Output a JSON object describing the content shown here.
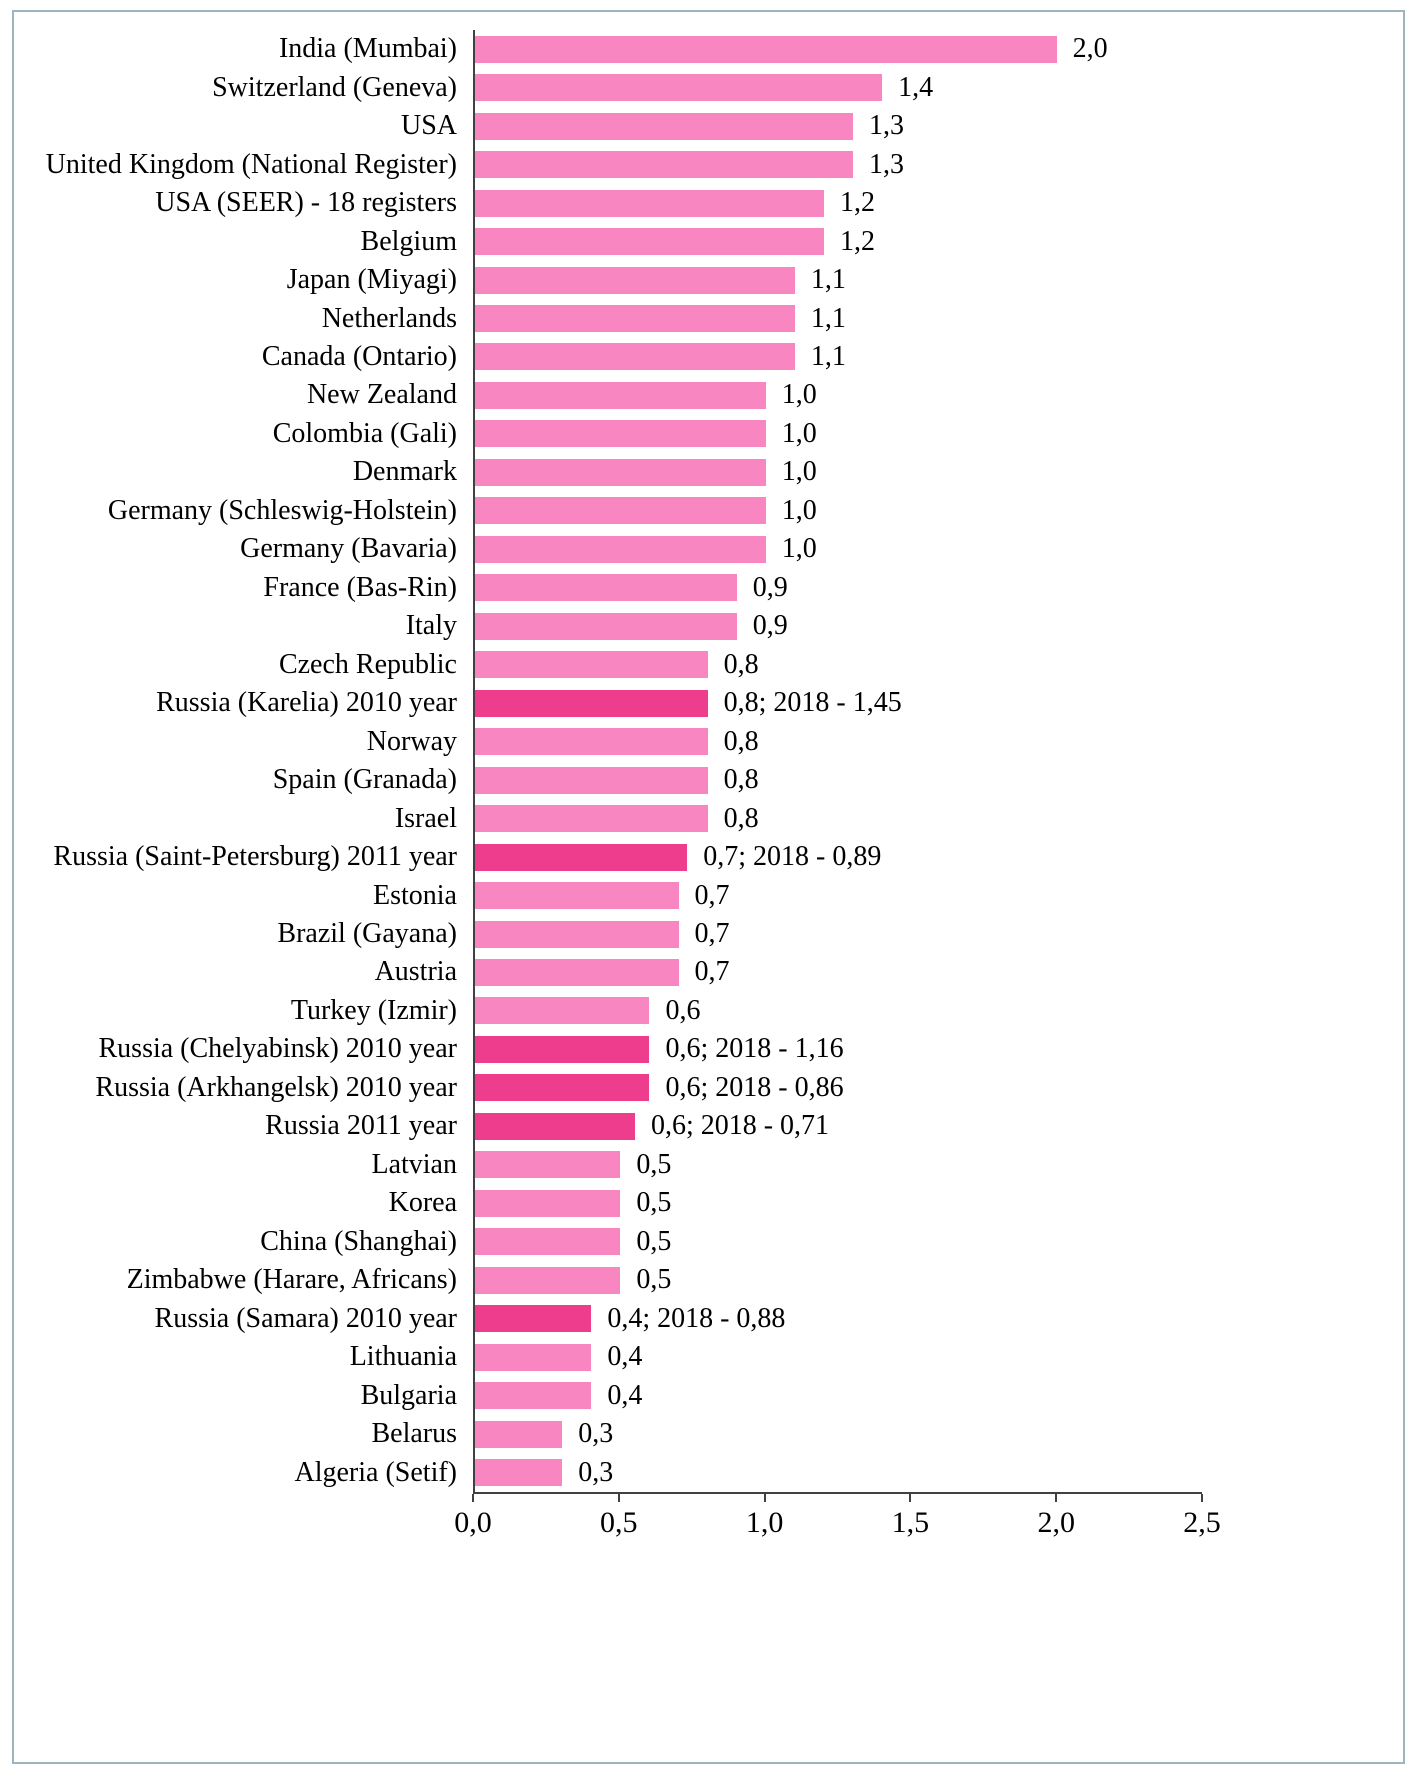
{
  "chart_data": {
    "type": "bar",
    "orientation": "horizontal",
    "title": "",
    "xlabel": "",
    "ylabel": "",
    "xlim": [
      0,
      2.5
    ],
    "x_ticks": [
      "0,0",
      "0,5",
      "1,0",
      "1,5",
      "2,0",
      "2,5"
    ],
    "grid": false,
    "legend": "none",
    "bar_color": "#f886c0",
    "highlight_color": "#ef3d8d",
    "bars": [
      {
        "label": "India (Mumbai)",
        "value": 2.0,
        "value_label": "2,0",
        "highlight": false
      },
      {
        "label": "Switzerland (Geneva)",
        "value": 1.4,
        "value_label": "1,4",
        "highlight": false
      },
      {
        "label": "USA",
        "value": 1.3,
        "value_label": "1,3",
        "highlight": false
      },
      {
        "label": "United Kingdom (National Register)",
        "value": 1.3,
        "value_label": "1,3",
        "highlight": false
      },
      {
        "label": "USA (SEER) - 18 registers",
        "value": 1.2,
        "value_label": "1,2",
        "highlight": false
      },
      {
        "label": "Belgium",
        "value": 1.2,
        "value_label": "1,2",
        "highlight": false
      },
      {
        "label": "Japan (Miyagi)",
        "value": 1.1,
        "value_label": "1,1",
        "highlight": false
      },
      {
        "label": "Netherlands",
        "value": 1.1,
        "value_label": "1,1",
        "highlight": false
      },
      {
        "label": "Canada (Ontario)",
        "value": 1.1,
        "value_label": "1,1",
        "highlight": false
      },
      {
        "label": "New Zealand",
        "value": 1.0,
        "value_label": "1,0",
        "highlight": false
      },
      {
        "label": "Colombia (Gali)",
        "value": 1.0,
        "value_label": "1,0",
        "highlight": false
      },
      {
        "label": "Denmark",
        "value": 1.0,
        "value_label": "1,0",
        "highlight": false
      },
      {
        "label": "Germany (Schleswig-Holstein)",
        "value": 1.0,
        "value_label": "1,0",
        "highlight": false
      },
      {
        "label": "Germany (Bavaria)",
        "value": 1.0,
        "value_label": "1,0",
        "highlight": false
      },
      {
        "label": "France (Bas-Rin)",
        "value": 0.9,
        "value_label": "0,9",
        "highlight": false
      },
      {
        "label": "Italy",
        "value": 0.9,
        "value_label": "0,9",
        "highlight": false
      },
      {
        "label": "Czech Republic",
        "value": 0.8,
        "value_label": "0,8",
        "highlight": false
      },
      {
        "label": "Russia (Karelia) 2010 year",
        "value": 0.8,
        "value_label": "0,8; 2018 - 1,45",
        "highlight": true
      },
      {
        "label": "Norway",
        "value": 0.8,
        "value_label": "0,8",
        "highlight": false
      },
      {
        "label": "Spain (Granada)",
        "value": 0.8,
        "value_label": "0,8",
        "highlight": false
      },
      {
        "label": "Israel",
        "value": 0.8,
        "value_label": "0,8",
        "highlight": false
      },
      {
        "label": "Russia (Saint-Petersburg) 2011 year",
        "value": 0.73,
        "value_label": "0,7; 2018 - 0,89",
        "highlight": true
      },
      {
        "label": "Estonia",
        "value": 0.7,
        "value_label": "0,7",
        "highlight": false
      },
      {
        "label": "Brazil (Gayana)",
        "value": 0.7,
        "value_label": "0,7",
        "highlight": false
      },
      {
        "label": "Austria",
        "value": 0.7,
        "value_label": "0,7",
        "highlight": false
      },
      {
        "label": "Turkey (Izmir)",
        "value": 0.6,
        "value_label": "0,6",
        "highlight": false
      },
      {
        "label": "Russia (Chelyabinsk) 2010 year",
        "value": 0.6,
        "value_label": "0,6; 2018 - 1,16",
        "highlight": true
      },
      {
        "label": "Russia (Arkhangelsk) 2010 year",
        "value": 0.6,
        "value_label": "0,6; 2018 - 0,86",
        "highlight": true
      },
      {
        "label": "Russia 2011 year",
        "value": 0.55,
        "value_label": "0,6; 2018 - 0,71",
        "highlight": true
      },
      {
        "label": "Latvian",
        "value": 0.5,
        "value_label": "0,5",
        "highlight": false
      },
      {
        "label": "Korea",
        "value": 0.5,
        "value_label": "0,5",
        "highlight": false
      },
      {
        "label": "China (Shanghai)",
        "value": 0.5,
        "value_label": "0,5",
        "highlight": false
      },
      {
        "label": "Zimbabwe (Harare, Africans)",
        "value": 0.5,
        "value_label": "0,5",
        "highlight": false
      },
      {
        "label": "Russia (Samara) 2010 year",
        "value": 0.4,
        "value_label": "0,4; 2018 - 0,88",
        "highlight": true
      },
      {
        "label": "Lithuania",
        "value": 0.4,
        "value_label": "0,4",
        "highlight": false
      },
      {
        "label": "Bulgaria",
        "value": 0.4,
        "value_label": "0,4",
        "highlight": false
      },
      {
        "label": "Belarus",
        "value": 0.3,
        "value_label": "0,3",
        "highlight": false
      },
      {
        "label": "Algeria (Setif)",
        "value": 0.3,
        "value_label": "0,3",
        "highlight": false
      }
    ]
  }
}
